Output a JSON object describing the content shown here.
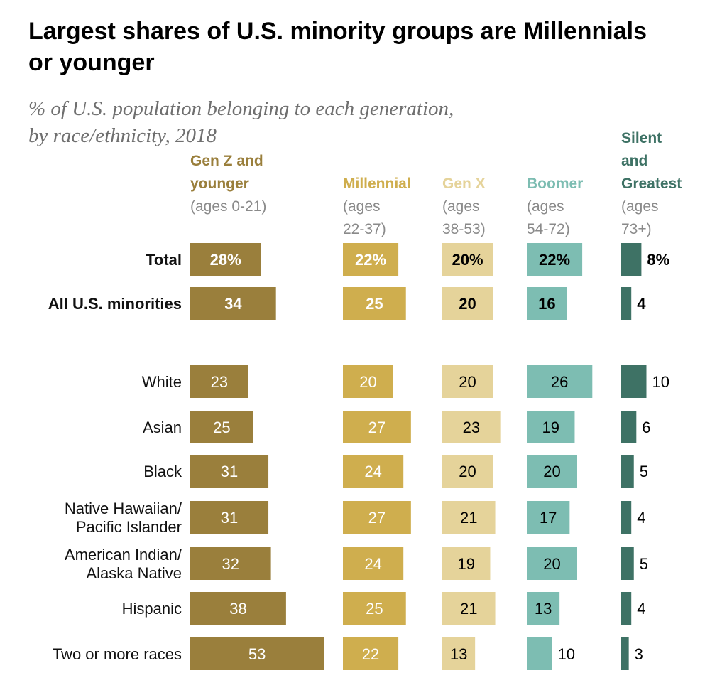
{
  "title": "Largest shares of U.S. minority groups are Millennials or younger",
  "subtitle_lines": [
    "% of U.S. population belonging to each generation,",
    "by race/ethnicity, 2018"
  ],
  "chart_data": {
    "type": "bar",
    "orientation": "horizontal",
    "layout": "small-multiples",
    "categories": [
      "Total",
      "All U.S. minorities",
      "White",
      "Asian",
      "Black",
      "Native Hawaiian/ Pacific Islander",
      "American Indian/ Alaska Native",
      "Hispanic",
      "Two or more races"
    ],
    "bold_categories": [
      "Total",
      "All U.S. minorities"
    ],
    "series": [
      {
        "name_lines": [
          "Gen Z and",
          "younger"
        ],
        "ages_lines": [
          "(ages 0-21)"
        ],
        "color": "#9a7f3c",
        "label_color": "#ffffff",
        "values": [
          28,
          34,
          23,
          25,
          31,
          31,
          32,
          38,
          53
        ]
      },
      {
        "name_lines": [
          "Millennial"
        ],
        "ages_lines": [
          "(ages",
          "22-37)"
        ],
        "color": "#cfae4e",
        "label_color": "#ffffff",
        "values": [
          22,
          25,
          20,
          27,
          24,
          27,
          24,
          25,
          22
        ]
      },
      {
        "name_lines": [
          "Gen X"
        ],
        "ages_lines": [
          "(ages",
          "38-53)"
        ],
        "color": "#e5d39a",
        "label_color": "#000000",
        "values": [
          20,
          20,
          20,
          23,
          20,
          21,
          19,
          21,
          13
        ]
      },
      {
        "name_lines": [
          "Boomer"
        ],
        "ages_lines": [
          "(ages",
          "54-72)"
        ],
        "color": "#7dbdb2",
        "label_color": "#000000",
        "values": [
          22,
          16,
          26,
          19,
          20,
          17,
          20,
          13,
          10
        ]
      },
      {
        "name_lines": [
          "Silent",
          "and",
          "Greatest"
        ],
        "ages_lines": [
          "(ages",
          "73+)"
        ],
        "color": "#3e7265",
        "label_color": "#000000",
        "values": [
          8,
          4,
          10,
          6,
          5,
          4,
          5,
          4,
          3
        ]
      }
    ],
    "first_row_suffix": "%",
    "header_colors": [
      "#9a7f3c",
      "#cfae4e",
      "#e5d39a",
      "#7dbdb2",
      "#3e7265"
    ]
  }
}
